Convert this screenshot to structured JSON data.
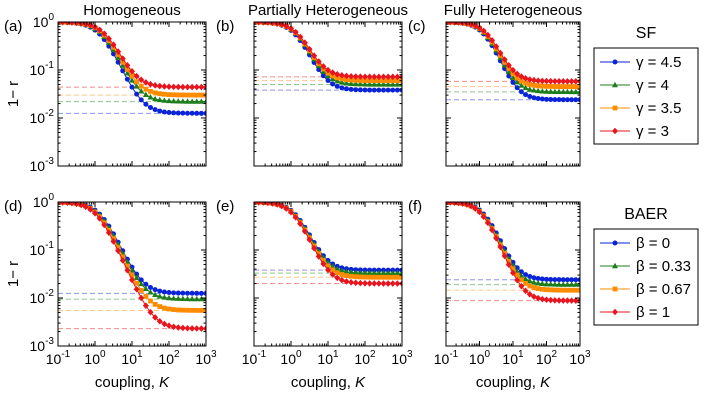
{
  "chart_data": [
    {
      "type": "line",
      "title": "Homogeneous",
      "panel_label": "(a)",
      "xscale": "log",
      "yscale": "log",
      "xlim": [
        0.1,
        1000
      ],
      "ylim": [
        0.001,
        1
      ],
      "ylabel": "1− r",
      "xlabel": "",
      "legend": "SF",
      "series": [
        {
          "name": "γ = 4.5",
          "asymptote": 0.0125,
          "k0": 1.5,
          "n": 1.8
        },
        {
          "name": "γ = 4",
          "asymptote": 0.022,
          "k0": 1.7,
          "n": 1.8
        },
        {
          "name": "γ = 3.5",
          "asymptote": 0.03,
          "k0": 1.85,
          "n": 1.8
        },
        {
          "name": "γ = 3",
          "asymptote": 0.044,
          "k0": 2.0,
          "n": 1.8
        }
      ]
    },
    {
      "type": "line",
      "title": "Partially Heterogeneous",
      "panel_label": "(b)",
      "xscale": "log",
      "yscale": "log",
      "xlim": [
        0.1,
        1000
      ],
      "ylim": [
        0.001,
        1
      ],
      "ylabel": "",
      "xlabel": "",
      "legend": "SF",
      "series": [
        {
          "name": "γ = 4.5",
          "asymptote": 0.038,
          "k0": 1.4,
          "n": 1.9
        },
        {
          "name": "γ = 4",
          "asymptote": 0.05,
          "k0": 1.5,
          "n": 1.9
        },
        {
          "name": "γ = 3.5",
          "asymptote": 0.06,
          "k0": 1.55,
          "n": 1.9
        },
        {
          "name": "γ = 3",
          "asymptote": 0.072,
          "k0": 1.6,
          "n": 1.9
        }
      ]
    },
    {
      "type": "line",
      "title": "Fully Heterogeneous",
      "panel_label": "(c)",
      "xscale": "log",
      "yscale": "log",
      "xlim": [
        0.1,
        1000
      ],
      "ylim": [
        0.001,
        1
      ],
      "ylabel": "",
      "xlabel": "",
      "legend": "SF",
      "series": [
        {
          "name": "γ = 4.5",
          "asymptote": 0.024,
          "k0": 1.5,
          "n": 1.8
        },
        {
          "name": "γ = 4",
          "asymptote": 0.035,
          "k0": 1.6,
          "n": 1.8
        },
        {
          "name": "γ = 3.5",
          "asymptote": 0.045,
          "k0": 1.7,
          "n": 1.8
        },
        {
          "name": "γ = 3",
          "asymptote": 0.058,
          "k0": 1.8,
          "n": 1.8
        }
      ]
    },
    {
      "type": "line",
      "title": "",
      "panel_label": "(d)",
      "xscale": "log",
      "yscale": "log",
      "xlim": [
        0.1,
        1000
      ],
      "ylim": [
        0.001,
        1
      ],
      "ylabel": "1− r",
      "xlabel": "coupling, K",
      "legend": "BAER",
      "series": [
        {
          "name": "β = 0",
          "asymptote": 0.0125,
          "k0": 1.5,
          "n": 1.8
        },
        {
          "name": "β = 0.33",
          "asymptote": 0.0095,
          "k0": 1.4,
          "n": 1.8
        },
        {
          "name": "β = 0.67",
          "asymptote": 0.0055,
          "k0": 1.3,
          "n": 1.8
        },
        {
          "name": "β = 1",
          "asymptote": 0.0023,
          "k0": 1.2,
          "n": 1.8
        }
      ]
    },
    {
      "type": "line",
      "title": "",
      "panel_label": "(e)",
      "xscale": "log",
      "yscale": "log",
      "xlim": [
        0.1,
        1000
      ],
      "ylim": [
        0.001,
        1
      ],
      "ylabel": "",
      "xlabel": "coupling, K",
      "legend": "BAER",
      "series": [
        {
          "name": "β = 0",
          "asymptote": 0.038,
          "k0": 1.4,
          "n": 1.9
        },
        {
          "name": "β = 0.33",
          "asymptote": 0.033,
          "k0": 1.35,
          "n": 1.9
        },
        {
          "name": "β = 0.67",
          "asymptote": 0.027,
          "k0": 1.3,
          "n": 1.9
        },
        {
          "name": "β = 1",
          "asymptote": 0.02,
          "k0": 1.25,
          "n": 1.9
        }
      ]
    },
    {
      "type": "line",
      "title": "",
      "panel_label": "(f)",
      "xscale": "log",
      "yscale": "log",
      "xlim": [
        0.1,
        1000
      ],
      "ylim": [
        0.001,
        1
      ],
      "ylabel": "",
      "xlabel": "coupling, K",
      "legend": "BAER",
      "series": [
        {
          "name": "β = 0",
          "asymptote": 0.024,
          "k0": 1.5,
          "n": 1.8
        },
        {
          "name": "β = 0.33",
          "asymptote": 0.019,
          "k0": 1.4,
          "n": 1.8
        },
        {
          "name": "β = 0.67",
          "asymptote": 0.0145,
          "k0": 1.35,
          "n": 1.8
        },
        {
          "name": "β = 1",
          "asymptote": 0.0088,
          "k0": 1.3,
          "n": 1.8
        }
      ]
    }
  ],
  "legends": {
    "SF": {
      "title": "SF",
      "entries": [
        "γ = 4.5",
        "γ = 4",
        "γ = 3.5",
        "γ = 3"
      ]
    },
    "BAER": {
      "title": "BAER",
      "entries": [
        "β = 0",
        "β = 0.33",
        "β = 0.67",
        "β = 1"
      ]
    }
  },
  "series_colors": [
    "#0a23d8",
    "#1d7d1d",
    "#ff8c00",
    "#e8141e"
  ],
  "dashed_line_colors": [
    "#8c96f0",
    "#8cc88c",
    "#ffc88c",
    "#f08c8c"
  ],
  "series_markers": [
    "circle",
    "triangle",
    "square",
    "diamond"
  ],
  "x_tick_labels": [
    "10^-1",
    "10^0",
    "10^1",
    "10^2",
    "10^3"
  ],
  "y_tick_labels": [
    "10^-3",
    "10^-2",
    "10^-1",
    "10^0"
  ]
}
